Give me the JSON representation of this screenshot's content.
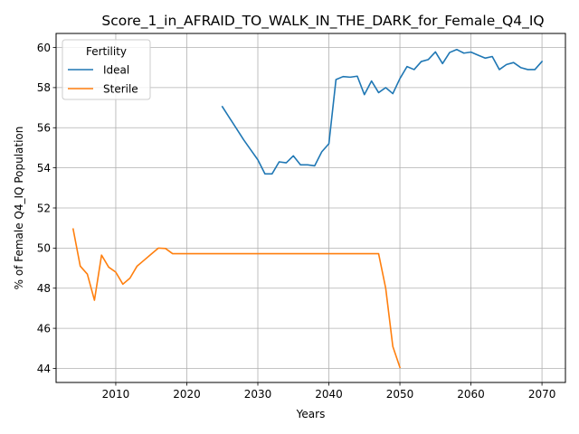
{
  "chart_data": {
    "type": "line",
    "title": "Score_1_in_AFRAID_TO_WALK_IN_THE_DARK_for_Female_Q4_IQ",
    "xlabel": "Years",
    "ylabel": "% of Female Q4_IQ Population",
    "xlim": [
      2001.6,
      2073.3
    ],
    "ylim": [
      43.3,
      60.7
    ],
    "xticks": [
      2010,
      2020,
      2030,
      2040,
      2050,
      2060,
      2070
    ],
    "yticks": [
      44,
      46,
      48,
      50,
      52,
      54,
      56,
      58,
      60
    ],
    "grid": true,
    "legend": {
      "title": "Fertility",
      "placement": "top-left"
    },
    "series": [
      {
        "name": "Ideal",
        "color": "#1f77b4",
        "x": [
          2025,
          2026,
          2027,
          2028,
          2029,
          2030,
          2031,
          2032,
          2033,
          2034,
          2035,
          2036,
          2037,
          2038,
          2039,
          2040,
          2041,
          2042,
          2043,
          2044,
          2045,
          2046,
          2047,
          2048,
          2049,
          2050,
          2051,
          2052,
          2053,
          2054,
          2055,
          2056,
          2057,
          2058,
          2059,
          2060,
          2061,
          2062,
          2063,
          2064,
          2065,
          2066,
          2067,
          2068,
          2069,
          2070
        ],
        "y": [
          57.05,
          56.5,
          55.95,
          55.4,
          54.9,
          54.4,
          53.7,
          53.7,
          54.3,
          54.25,
          54.6,
          54.15,
          54.15,
          54.1,
          54.8,
          55.2,
          58.4,
          58.55,
          58.52,
          58.57,
          57.65,
          58.33,
          57.75,
          58.0,
          57.7,
          58.45,
          59.05,
          58.9,
          59.3,
          59.4,
          59.78,
          59.2,
          59.75,
          59.9,
          59.72,
          59.77,
          59.62,
          59.47,
          59.55,
          58.9,
          59.15,
          59.25,
          59.0,
          58.9,
          58.9,
          59.3
        ]
      },
      {
        "name": "Sterile",
        "color": "#ff7f0e",
        "x": [
          2004,
          2005,
          2006,
          2007,
          2008,
          2009,
          2010,
          2011,
          2012,
          2013,
          2014,
          2015,
          2016,
          2017,
          2018,
          2019,
          2020,
          2025,
          2030,
          2035,
          2040,
          2045,
          2047,
          2048,
          2049,
          2050
        ],
        "y": [
          50.95,
          49.1,
          48.7,
          47.4,
          49.65,
          49.05,
          48.8,
          48.2,
          48.5,
          49.1,
          49.4,
          49.7,
          50.0,
          49.98,
          49.72,
          49.72,
          49.72,
          49.72,
          49.72,
          49.72,
          49.72,
          49.72,
          49.72,
          48.0,
          45.1,
          44.05
        ]
      }
    ]
  }
}
